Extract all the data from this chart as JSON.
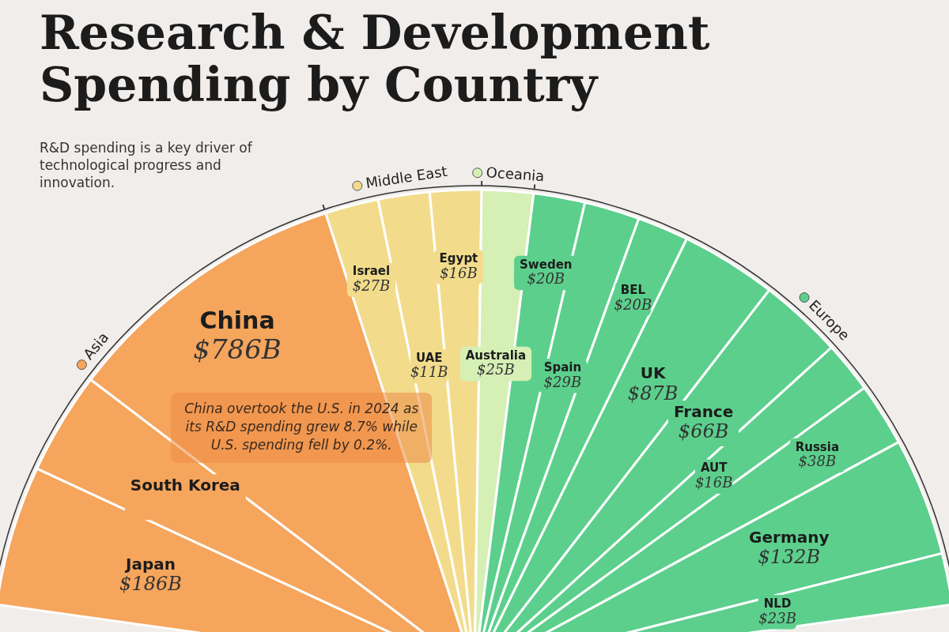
{
  "chart_data": {
    "type": "other",
    "title": "Research & Development Spending by Country",
    "subtitle": "R&D spending is a key driver of technological progress and innovation.",
    "legend": "top",
    "annotations": [
      "China overtook the U.S. in 2024 as its R&D spending grew 8.7% while U.S. spending fell by 0.2%."
    ],
    "categories": [
      "Japan",
      "South Korea",
      "China",
      "Israel",
      "UAE",
      "Egypt",
      "Australia",
      "Sweden",
      "Spain",
      "BEL",
      "UK",
      "France",
      "AUT",
      "Russia",
      "Germany",
      "NLD"
    ],
    "series": [
      {
        "name": "Asia",
        "color": "#f5a55c",
        "values": [
          186,
          null,
          786,
          null,
          null,
          null,
          null,
          null,
          null,
          null,
          null,
          null,
          null,
          null,
          null,
          null
        ],
        "value_labels": [
          "$186B",
          null,
          "$786B",
          null,
          null,
          null,
          null,
          null,
          null,
          null,
          null,
          null,
          null,
          null,
          null,
          null
        ]
      },
      {
        "name": "Middle East",
        "color": "#f2dc8c",
        "values": [
          null,
          null,
          null,
          27,
          11,
          16,
          null,
          null,
          null,
          null,
          null,
          null,
          null,
          null,
          null,
          null
        ],
        "value_labels": [
          null,
          null,
          null,
          "$27B",
          "$11B",
          "$16B",
          null,
          null,
          null,
          null,
          null,
          null,
          null,
          null,
          null,
          null
        ]
      },
      {
        "name": "Oceania",
        "color": "#d5efb5",
        "values": [
          null,
          null,
          null,
          null,
          null,
          null,
          25,
          null,
          null,
          null,
          null,
          null,
          null,
          null,
          null,
          null
        ],
        "value_labels": [
          null,
          null,
          null,
          null,
          null,
          null,
          "$25B",
          null,
          null,
          null,
          null,
          null,
          null,
          null,
          null,
          null
        ]
      },
      {
        "name": "Europe",
        "color": "#5ccf8c",
        "values": [
          null,
          null,
          null,
          null,
          null,
          null,
          null,
          20,
          29,
          20,
          87,
          66,
          16,
          38,
          132,
          23
        ],
        "value_labels": [
          null,
          null,
          null,
          null,
          null,
          null,
          null,
          "$20B",
          "$29B",
          "$20B",
          "$87B",
          "$66B",
          "$16B",
          "$38B",
          "$132B",
          "$23B"
        ]
      }
    ]
  }
}
